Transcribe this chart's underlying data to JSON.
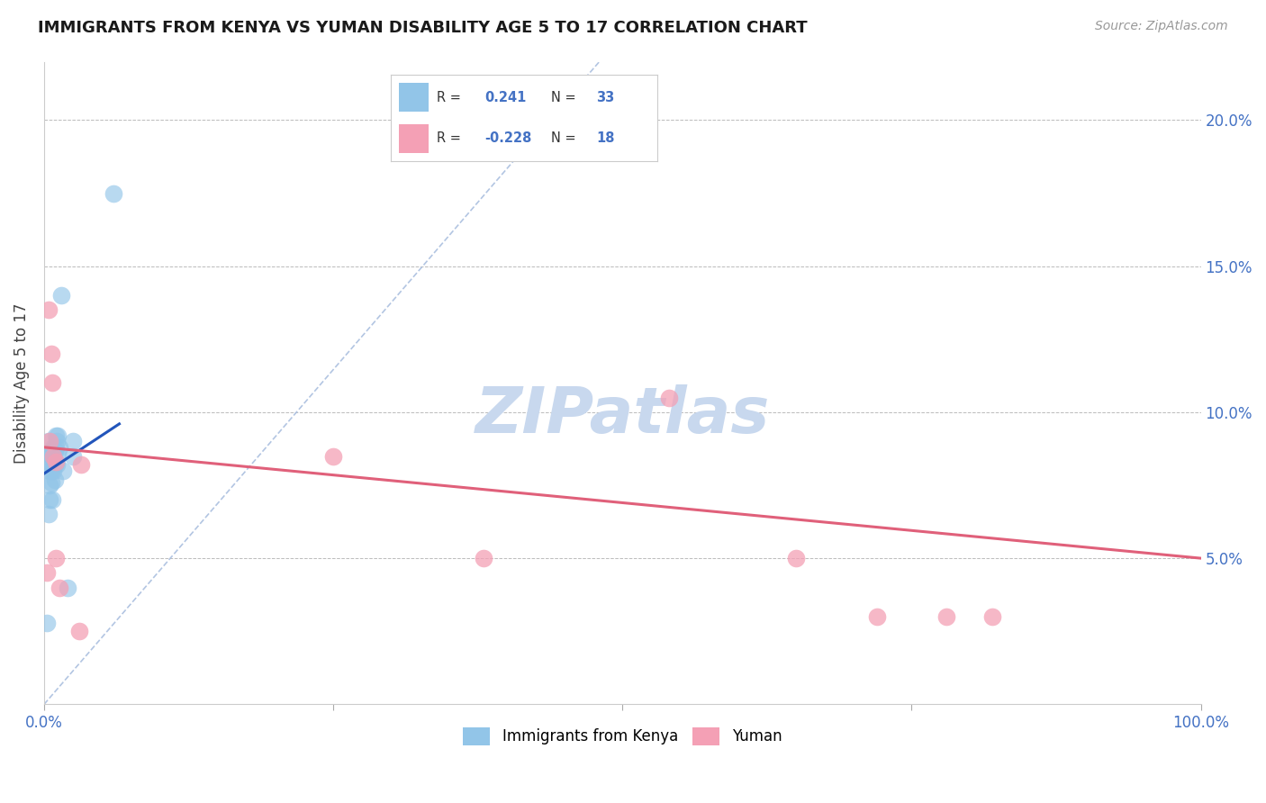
{
  "title": "IMMIGRANTS FROM KENYA VS YUMAN DISABILITY AGE 5 TO 17 CORRELATION CHART",
  "source": "Source: ZipAtlas.com",
  "ylabel": "Disability Age 5 to 17",
  "legend_label1": "Immigrants from Kenya",
  "legend_label2": "Yuman",
  "r1": 0.241,
  "n1": 33,
  "r2": -0.228,
  "n2": 18,
  "xlim": [
    0.0,
    1.0
  ],
  "ylim": [
    0.0,
    0.22
  ],
  "blue_color": "#92C5E8",
  "pink_color": "#F4A0B5",
  "line_blue_color": "#2255BB",
  "line_pink_color": "#E0607A",
  "diag_color": "#AABFDF",
  "title_color": "#1A1A1A",
  "tick_color": "#4472C4",
  "watermark_color": "#C8D8EE",
  "blue_points_x": [
    0.002,
    0.003,
    0.004,
    0.004,
    0.005,
    0.005,
    0.005,
    0.006,
    0.006,
    0.006,
    0.007,
    0.007,
    0.007,
    0.008,
    0.008,
    0.008,
    0.009,
    0.009,
    0.009,
    0.01,
    0.01,
    0.01,
    0.011,
    0.011,
    0.012,
    0.012,
    0.013,
    0.015,
    0.016,
    0.02,
    0.025,
    0.025,
    0.06
  ],
  "blue_points_y": [
    0.028,
    0.085,
    0.065,
    0.09,
    0.07,
    0.075,
    0.08,
    0.076,
    0.08,
    0.085,
    0.082,
    0.087,
    0.07,
    0.08,
    0.084,
    0.088,
    0.082,
    0.087,
    0.077,
    0.083,
    0.088,
    0.092,
    0.082,
    0.09,
    0.086,
    0.092,
    0.088,
    0.14,
    0.08,
    0.04,
    0.085,
    0.09,
    0.175
  ],
  "pink_points_x": [
    0.002,
    0.004,
    0.005,
    0.006,
    0.007,
    0.008,
    0.01,
    0.01,
    0.013,
    0.03,
    0.032,
    0.25,
    0.38,
    0.54,
    0.65,
    0.72,
    0.78,
    0.82
  ],
  "pink_points_y": [
    0.045,
    0.135,
    0.09,
    0.12,
    0.11,
    0.085,
    0.083,
    0.05,
    0.04,
    0.025,
    0.082,
    0.085,
    0.05,
    0.105,
    0.05,
    0.03,
    0.03,
    0.03
  ],
  "blue_line_x": [
    0.0,
    0.065
  ],
  "pink_line_x": [
    0.0,
    1.0
  ],
  "blue_line_y_start": 0.079,
  "blue_line_y_end": 0.096,
  "pink_line_y_start": 0.088,
  "pink_line_y_end": 0.05
}
